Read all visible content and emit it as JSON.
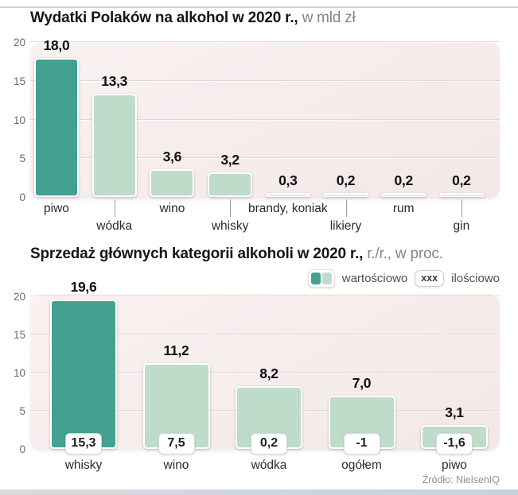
{
  "chart_data": [
    {
      "type": "bar",
      "title": "Wydatki Polaków na alkohol w 2020 r.,",
      "subtitle": " w mld zł",
      "categories": [
        "piwo",
        "wódka",
        "wino",
        "whisky",
        "brandy, koniak",
        "likiery",
        "rum",
        "gin"
      ],
      "values": [
        18.0,
        13.3,
        3.6,
        3.2,
        0.3,
        0.2,
        0.2,
        0.2
      ],
      "value_labels": [
        "18,0",
        "13,3",
        "3,6",
        "3,2",
        "0,3",
        "0,2",
        "0,2",
        "0,2"
      ],
      "yticks": [
        0,
        5,
        10,
        15,
        20
      ],
      "ylim": [
        0,
        20
      ],
      "highlight_index": 0,
      "grid": true,
      "legend_position": "none"
    },
    {
      "type": "bar",
      "title": "Sprzedaż głównych kategorii alkoholi w 2020 r.,",
      "subtitle": " r./r., w proc.",
      "categories": [
        "whisky",
        "wino",
        "wódka",
        "ogółem",
        "piwo"
      ],
      "series": [
        {
          "name": "wartościowo",
          "values": [
            19.6,
            11.2,
            8.2,
            7.0,
            3.1
          ],
          "labels": [
            "19,6",
            "11,2",
            "8,2",
            "7,0",
            "3,1"
          ]
        },
        {
          "name": "ilościowo",
          "values": [
            15.3,
            7.5,
            0.2,
            -1,
            -1.6
          ],
          "labels": [
            "15,3",
            "7,5",
            "0,2",
            "-1",
            "-1,6"
          ]
        }
      ],
      "yticks": [
        0,
        5,
        10,
        15,
        20
      ],
      "ylim": [
        0,
        20
      ],
      "highlight_index": 0,
      "grid": true,
      "legend_position": "top-right",
      "legend": {
        "value_series": "wartościowo",
        "qty_badge": "xxx",
        "qty_series": "ilościowo"
      }
    }
  ],
  "source": "Źródło: NielsenIQ",
  "colors": {
    "bar_dark": "#44a191",
    "bar_light": "#bfdccb",
    "plot_bg": "#f6eeee",
    "bottom_band": "#c7d1e1"
  }
}
